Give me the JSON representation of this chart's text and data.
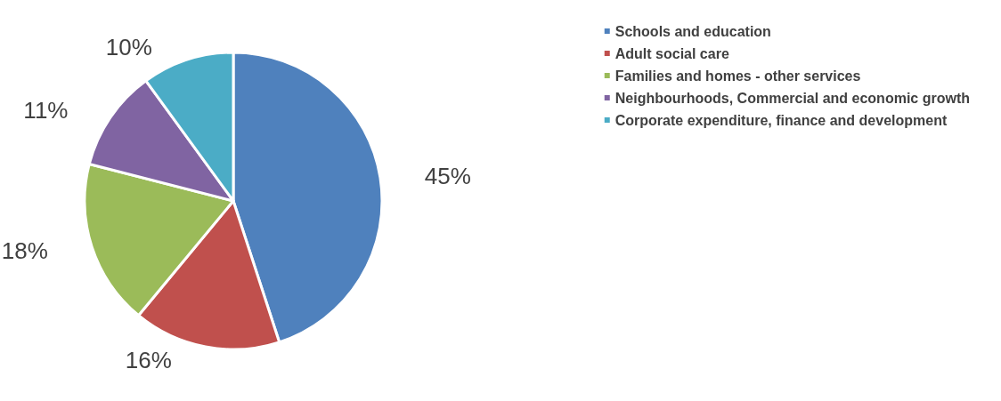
{
  "chart_data": {
    "type": "pie",
    "categories": [
      "Schools and education",
      "Adult social care",
      "Families and homes - other services",
      "Neighbourhoods, Commercial and economic growth",
      "Corporate expenditure, finance and development"
    ],
    "values": [
      45,
      16,
      18,
      11,
      10
    ],
    "colors": [
      "#4f81bd",
      "#c0504d",
      "#9bbb59",
      "#8064a2",
      "#4bacc6"
    ],
    "value_labels": [
      "45%",
      "16%",
      "18%",
      "11%",
      "10%"
    ],
    "legend": "top right"
  }
}
